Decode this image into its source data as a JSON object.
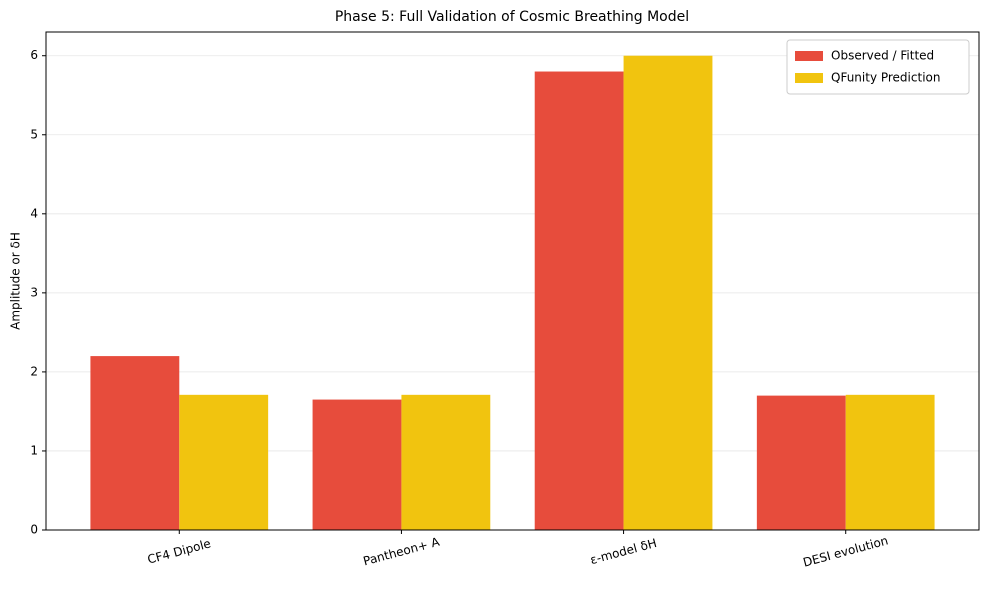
{
  "chart_data": {
    "type": "bar",
    "title": "Phase 5: Full Validation of Cosmic Breathing Model",
    "y_label": "Amplitude or δH",
    "categories": [
      "CF4 Dipole",
      "Pantheon+ A",
      "ε-model δH",
      "DESI evolution"
    ],
    "series": [
      {
        "name": "Observed / Fitted",
        "color": "#e74c3c",
        "values": [
          2.2,
          1.65,
          5.8,
          1.7
        ]
      },
      {
        "name": "QFunity Prediction",
        "color": "#f1c40f",
        "values": [
          1.71,
          1.71,
          6.0,
          1.71
        ]
      }
    ],
    "ylim": [
      0,
      6.3
    ],
    "yticks": [
      0,
      1,
      2,
      3,
      4,
      5,
      6
    ],
    "grid": true,
    "legend": "upper right"
  }
}
